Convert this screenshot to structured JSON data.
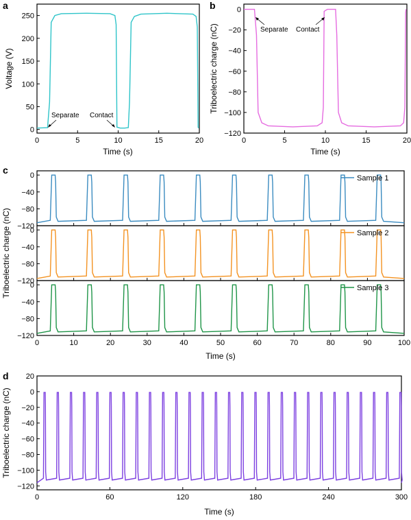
{
  "panels": [
    {
      "label": "a"
    },
    {
      "label": "b"
    },
    {
      "label": "c"
    },
    {
      "label": "d"
    }
  ],
  "chart_data": [
    {
      "panel": "a",
      "type": "line",
      "xlabel": "Time (s)",
      "ylabel": "Voltage (V)",
      "xlim": [
        0,
        20
      ],
      "ylim": [
        -8,
        275
      ],
      "xticks": [
        0,
        5,
        10,
        15,
        20
      ],
      "yticks": [
        0,
        50,
        100,
        150,
        200,
        250
      ],
      "grid": false,
      "color": "#2EC4C9",
      "series": [
        {
          "x": [
            0,
            1.3,
            1.55,
            1.75,
            2.2,
            3,
            6,
            9,
            9.6,
            9.75,
            9.85,
            10.25,
            10.8,
            11.25,
            11.4,
            11.6,
            12.0,
            12.8,
            16,
            19.2,
            19.6,
            19.75,
            19.85,
            19.9
          ],
          "y": [
            3,
            4,
            60,
            235,
            250,
            254,
            255,
            254,
            250,
            230,
            5,
            3,
            3,
            4,
            60,
            235,
            248,
            253,
            255,
            253,
            248,
            225,
            5,
            3
          ]
        }
      ],
      "annotations": [
        {
          "text": "Separate",
          "x": 1.5,
          "y": 4
        },
        {
          "text": "Contact",
          "x": 10.2,
          "y": 4
        }
      ]
    },
    {
      "panel": "b",
      "type": "line",
      "xlabel": "Time (s)",
      "ylabel": "Triboelectric charge (nC)",
      "xlim": [
        0,
        20
      ],
      "ylim": [
        -120,
        5
      ],
      "xticks": [
        0,
        5,
        10,
        15,
        20
      ],
      "yticks": [
        0,
        -20,
        -40,
        -60,
        -80,
        -100,
        -120
      ],
      "grid": false,
      "color": "#E56BE0",
      "series": [
        {
          "x": [
            0,
            1.3,
            1.55,
            1.75,
            2.2,
            3,
            6,
            9,
            9.6,
            9.75,
            9.85,
            10.25,
            10.8,
            11.25,
            11.4,
            11.6,
            12.0,
            12.8,
            16,
            19.2,
            19.6,
            19.75,
            19.85,
            19.9
          ],
          "y": [
            0,
            0,
            -25,
            -100,
            -110,
            -113,
            -114,
            -113,
            -110,
            -95,
            -2,
            0,
            0,
            0,
            -25,
            -100,
            -110,
            -113,
            -114,
            -113,
            -110,
            -95,
            -3,
            0
          ]
        }
      ],
      "annotations": [
        {
          "text": "Separate",
          "x": 1.5,
          "y": 0
        },
        {
          "text": "Contact",
          "x": 10.2,
          "y": 0
        }
      ]
    },
    {
      "panel": "c",
      "type": "line",
      "xlabel": "Time (s)",
      "ylabel": "Triboelectric charge (nC)",
      "xlim": [
        0,
        100
      ],
      "ylim": [
        -120,
        10
      ],
      "xticks": [
        0,
        10,
        20,
        30,
        40,
        50,
        60,
        70,
        80,
        90,
        100
      ],
      "yticks": [
        0,
        -40,
        -80,
        -120
      ],
      "yticklabels": [
        "0",
        "−40",
        "−80",
        "−120"
      ],
      "grid": false,
      "period_s": 9.85,
      "series": [
        {
          "name": "Sample 1",
          "color": "#3A8BC0",
          "baseline": -113,
          "peak": 0,
          "first_peak_s": 4.5
        },
        {
          "name": "Sample 2",
          "color": "#F39221",
          "baseline": -115,
          "peak": 0,
          "first_peak_s": 4.5
        },
        {
          "name": "Sample 3",
          "color": "#1E9447",
          "baseline": -115,
          "peak": 0,
          "first_peak_s": 4.5
        }
      ]
    },
    {
      "panel": "d",
      "type": "line",
      "xlabel": "Time (s)",
      "ylabel": "Triboelectric charge (nC)",
      "xlim": [
        0,
        300
      ],
      "ylim": [
        -125,
        20
      ],
      "xticks": [
        0,
        60,
        120,
        180,
        240,
        300
      ],
      "yticks": [
        20,
        0,
        -20,
        -40,
        -60,
        -80,
        -100,
        -120
      ],
      "grid": false,
      "color": "#7C3FE0",
      "period_s": 10.85,
      "first_peak_s": 6.3,
      "baseline": -116,
      "peak": -1
    }
  ]
}
